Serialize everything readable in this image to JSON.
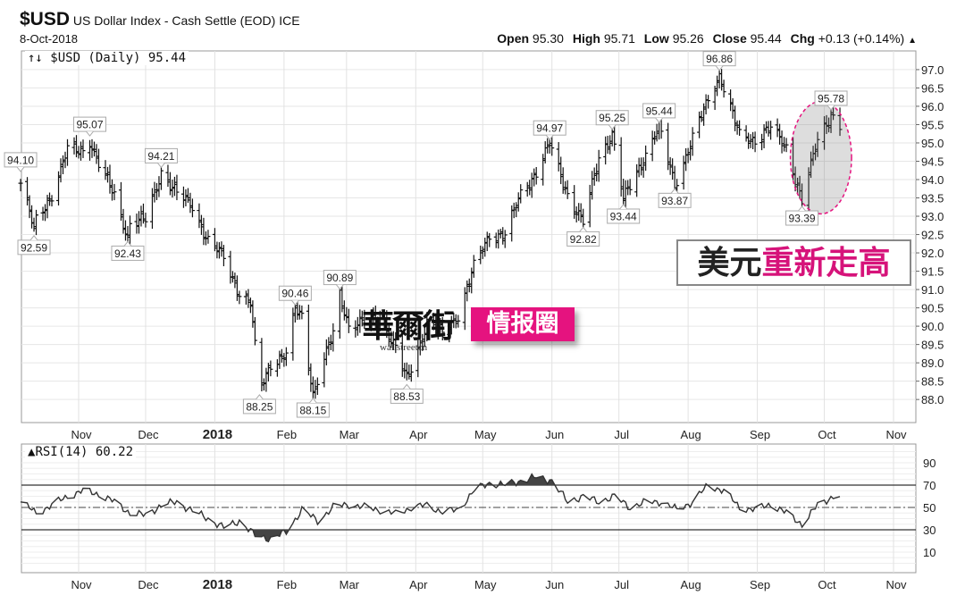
{
  "header": {
    "symbol": "$USD",
    "name": "US Dollar Index - Cash Settle (EOD) ICE",
    "date": "8-Oct-2018",
    "open_label": "Open",
    "open": "95.30",
    "high_label": "High",
    "high": "95.71",
    "low_label": "Low",
    "low": "95.26",
    "close_label": "Close",
    "close": "95.44",
    "chg_label": "Chg",
    "chg": "+0.13 (+0.14%)",
    "chg_icon": "triangle-up"
  },
  "price_legend": "↑↓ $USD (Daily) 95.44",
  "rsi_legend": "RSI(14) 60.22",
  "watermark": {
    "logo": "華爾街",
    "logo_sub": "wallstreetcn",
    "tag": "情报圈",
    "tag_color": "#e5137f"
  },
  "headline": {
    "part1": "美元",
    "part2": "重新走高",
    "part2_color": "#d6137a"
  },
  "chart_data": [
    {
      "type": "ohlc",
      "title": "$USD (Daily)",
      "ylim": [
        87.37,
        97.51
      ],
      "y_ticks": [
        "88.0",
        "88.5",
        "89.0",
        "89.5",
        "90.0",
        "90.5",
        "91.0",
        "91.5",
        "92.0",
        "92.5",
        "93.0",
        "93.5",
        "94.0",
        "94.5",
        "95.0",
        "95.5",
        "96.0",
        "96.5",
        "97.0"
      ],
      "x_ticks": [
        "Nov",
        "Dec",
        "2018",
        "Feb",
        "Mar",
        "Apr",
        "May",
        "Jun",
        "Jul",
        "Aug",
        "Sep",
        "Oct",
        "Nov"
      ],
      "x_tick_dates": [
        "2017-11-01",
        "2017-12-01",
        "2018-01-01",
        "2018-02-01",
        "2018-03-01",
        "2018-04-01",
        "2018-05-01",
        "2018-06-01",
        "2018-07-01",
        "2018-08-01",
        "2018-09-01",
        "2018-10-01",
        "2018-11-01"
      ],
      "x_range": [
        "2017-10-06",
        "2018-11-10"
      ],
      "grid": true,
      "weekly_closes": [
        [
          "2017-10-06",
          93.9
        ],
        [
          "2017-10-13",
          92.9
        ],
        [
          "2017-10-20",
          93.6
        ],
        [
          "2017-10-27",
          94.8
        ],
        [
          "2017-11-03",
          94.8
        ],
        [
          "2017-11-10",
          94.4
        ],
        [
          "2017-11-17",
          93.6
        ],
        [
          "2017-11-24",
          92.8
        ],
        [
          "2017-12-01",
          92.9
        ],
        [
          "2017-12-15",
          93.6
        ],
        [
          "2017-12-22",
          93.3
        ],
        [
          "2017-12-29",
          92.3
        ],
        [
          "2018-01-05",
          91.9
        ],
        [
          "2018-01-12",
          90.9
        ],
        [
          "2018-01-17",
          90.6
        ],
        [
          "2018-01-26",
          89.0
        ],
        [
          "2018-02-02",
          89.2
        ],
        [
          "2018-02-09",
          90.3
        ],
        [
          "2018-02-23",
          89.8
        ],
        [
          "2018-03-02",
          90.0
        ],
        [
          "2018-03-09",
          90.1
        ],
        [
          "2018-03-16",
          90.2
        ],
        [
          "2018-03-23",
          89.4
        ],
        [
          "2018-04-06",
          90.1
        ],
        [
          "2018-04-13",
          89.8
        ],
        [
          "2018-04-20",
          90.3
        ],
        [
          "2018-04-27",
          91.6
        ],
        [
          "2018-05-04",
          92.5
        ],
        [
          "2018-05-11",
          92.5
        ],
        [
          "2018-05-18",
          93.6
        ],
        [
          "2018-05-25",
          94.2
        ],
        [
          "2018-06-08",
          93.6
        ],
        [
          "2018-06-22",
          94.6
        ],
        [
          "2018-07-13",
          94.7
        ],
        [
          "2018-08-03",
          95.1
        ],
        [
          "2018-08-10",
          96.2
        ],
        [
          "2018-08-24",
          95.2
        ],
        [
          "2018-08-31",
          95.1
        ],
        [
          "2018-09-07",
          95.4
        ],
        [
          "2018-09-14",
          94.9
        ],
        [
          "2018-09-28",
          95.1
        ],
        [
          "2018-10-08",
          95.44
        ]
      ],
      "annotations": [
        {
          "date": "2017-10-06",
          "value": 94.1,
          "label": "94.10",
          "pos": "above"
        },
        {
          "date": "2017-10-12",
          "value": 92.59,
          "label": "92.59",
          "pos": "below"
        },
        {
          "date": "2017-11-06",
          "value": 95.07,
          "label": "95.07",
          "pos": "above"
        },
        {
          "date": "2017-11-23",
          "value": 92.43,
          "label": "92.43",
          "pos": "below"
        },
        {
          "date": "2017-12-08",
          "value": 94.21,
          "label": "94.21",
          "pos": "above"
        },
        {
          "date": "2018-01-21",
          "value": 88.25,
          "label": "88.25",
          "pos": "below"
        },
        {
          "date": "2018-02-06",
          "value": 90.46,
          "label": "90.46",
          "pos": "above"
        },
        {
          "date": "2018-02-14",
          "value": 88.15,
          "label": "88.15",
          "pos": "below"
        },
        {
          "date": "2018-02-26",
          "value": 90.89,
          "label": "90.89",
          "pos": "above"
        },
        {
          "date": "2018-03-28",
          "value": 88.53,
          "label": "88.53",
          "pos": "below"
        },
        {
          "date": "2018-05-31",
          "value": 94.97,
          "label": "94.97",
          "pos": "above"
        },
        {
          "date": "2018-06-15",
          "value": 92.82,
          "label": "92.82",
          "pos": "below"
        },
        {
          "date": "2018-06-28",
          "value": 95.25,
          "label": "95.25",
          "pos": "above"
        },
        {
          "date": "2018-07-03",
          "value": 93.44,
          "label": "93.44",
          "pos": "below"
        },
        {
          "date": "2018-07-19",
          "value": 95.44,
          "label": "95.44",
          "pos": "above"
        },
        {
          "date": "2018-07-26",
          "value": 93.87,
          "label": "93.87",
          "pos": "below"
        },
        {
          "date": "2018-08-15",
          "value": 96.86,
          "label": "96.86",
          "pos": "above"
        },
        {
          "date": "2018-09-21",
          "value": 93.39,
          "label": "93.39",
          "pos": "below"
        },
        {
          "date": "2018-10-04",
          "value": 95.78,
          "label": "95.78",
          "pos": "above"
        }
      ],
      "highlight": {
        "from": "2018-09-19",
        "to": "2018-10-10",
        "color": "#e5137f"
      }
    },
    {
      "type": "line",
      "title": "RSI(14)",
      "ylim": [
        -8.4,
        106.8
      ],
      "y_ticks": [
        "10",
        "30",
        "50",
        "70",
        "90"
      ],
      "overbought": 70,
      "oversold": 30,
      "midline": 50,
      "x_ticks": [
        "Nov",
        "Dec",
        "2018",
        "Feb",
        "Mar",
        "Apr",
        "May",
        "Jun",
        "Jul",
        "Aug",
        "Sep",
        "Oct",
        "Nov"
      ],
      "weekly_values": [
        [
          "2017-10-06",
          55
        ],
        [
          "2017-10-13",
          45
        ],
        [
          "2017-10-20",
          52
        ],
        [
          "2017-10-27",
          60
        ],
        [
          "2017-11-03",
          65
        ],
        [
          "2017-11-10",
          62
        ],
        [
          "2017-11-17",
          55
        ],
        [
          "2017-11-24",
          45
        ],
        [
          "2017-12-01",
          43
        ],
        [
          "2017-12-08",
          52
        ],
        [
          "2017-12-15",
          55
        ],
        [
          "2017-12-22",
          47
        ],
        [
          "2017-12-29",
          40
        ],
        [
          "2018-01-05",
          32
        ],
        [
          "2018-01-12",
          38
        ],
        [
          "2018-01-19",
          25
        ],
        [
          "2018-01-26",
          22
        ],
        [
          "2018-02-02",
          28
        ],
        [
          "2018-02-09",
          48
        ],
        [
          "2018-02-16",
          38
        ],
        [
          "2018-02-23",
          50
        ],
        [
          "2018-03-02",
          53
        ],
        [
          "2018-03-09",
          50
        ],
        [
          "2018-03-16",
          48
        ],
        [
          "2018-03-23",
          44
        ],
        [
          "2018-03-30",
          50
        ],
        [
          "2018-04-06",
          52
        ],
        [
          "2018-04-13",
          46
        ],
        [
          "2018-04-20",
          48
        ],
        [
          "2018-04-27",
          65
        ],
        [
          "2018-05-04",
          72
        ],
        [
          "2018-05-11",
          70
        ],
        [
          "2018-05-18",
          74
        ],
        [
          "2018-05-25",
          77
        ],
        [
          "2018-06-01",
          74
        ],
        [
          "2018-06-08",
          55
        ],
        [
          "2018-06-15",
          60
        ],
        [
          "2018-06-22",
          55
        ],
        [
          "2018-06-29",
          60
        ],
        [
          "2018-07-06",
          50
        ],
        [
          "2018-07-13",
          55
        ],
        [
          "2018-07-20",
          55
        ],
        [
          "2018-07-27",
          48
        ],
        [
          "2018-08-03",
          55
        ],
        [
          "2018-08-10",
          70
        ],
        [
          "2018-08-17",
          65
        ],
        [
          "2018-08-24",
          50
        ],
        [
          "2018-08-31",
          48
        ],
        [
          "2018-09-07",
          53
        ],
        [
          "2018-09-14",
          45
        ],
        [
          "2018-09-21",
          35
        ],
        [
          "2018-09-28",
          52
        ],
        [
          "2018-10-05",
          60
        ],
        [
          "2018-10-08",
          60.22
        ]
      ]
    }
  ]
}
